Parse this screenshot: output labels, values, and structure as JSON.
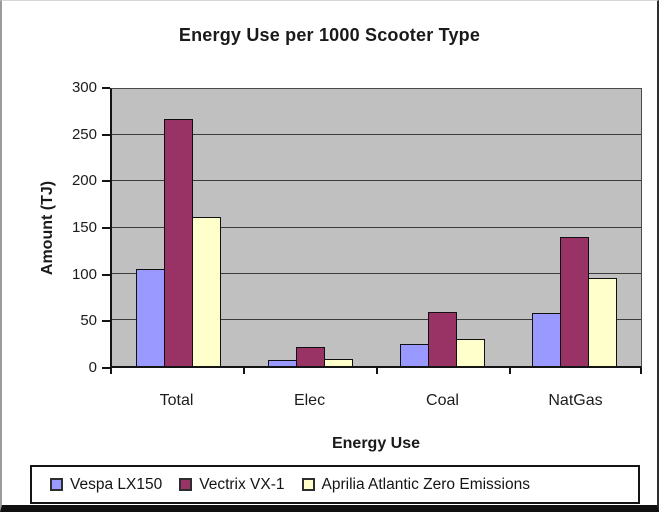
{
  "chart_data": {
    "type": "bar",
    "title": "Energy Use per 1000 Scooter Type",
    "xlabel": "Energy Use",
    "ylabel": "Amount (TJ)",
    "categories": [
      "Total",
      "Elec",
      "Coal",
      "NatGas"
    ],
    "series": [
      {
        "name": "Vespa LX150",
        "color": "#9999FF",
        "values": [
          105,
          7,
          24,
          57
        ]
      },
      {
        "name": "Vectrix VX-1",
        "color": "#993366",
        "values": [
          267,
          21,
          59,
          140
        ]
      },
      {
        "name": "Aprilia Atlantic Zero Emissions",
        "color": "#FFFFCC",
        "values": [
          161,
          8,
          29,
          95
        ]
      }
    ],
    "ylim": [
      0,
      300
    ],
    "yticks": [
      0,
      50,
      100,
      150,
      200,
      250,
      300
    ],
    "grid": true,
    "legend_position": "bottom",
    "plot_bg": "#C0C0C0",
    "gridline_color": "#3c3c3c"
  }
}
